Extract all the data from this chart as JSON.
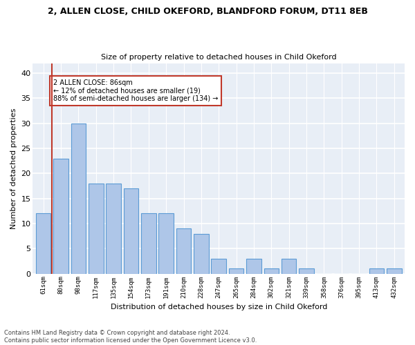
{
  "title1": "2, ALLEN CLOSE, CHILD OKEFORD, BLANDFORD FORUM, DT11 8EB",
  "title2": "Size of property relative to detached houses in Child Okeford",
  "xlabel": "Distribution of detached houses by size in Child Okeford",
  "ylabel": "Number of detached properties",
  "categories": [
    "61sqm",
    "80sqm",
    "98sqm",
    "117sqm",
    "135sqm",
    "154sqm",
    "173sqm",
    "191sqm",
    "210sqm",
    "228sqm",
    "247sqm",
    "265sqm",
    "284sqm",
    "302sqm",
    "321sqm",
    "339sqm",
    "358sqm",
    "376sqm",
    "395sqm",
    "413sqm",
    "432sqm"
  ],
  "values": [
    12,
    23,
    30,
    18,
    18,
    17,
    12,
    12,
    9,
    8,
    3,
    1,
    3,
    1,
    3,
    1,
    0,
    0,
    0,
    1,
    1
  ],
  "bar_color": "#aec6e8",
  "bar_edge_color": "#5b9bd5",
  "background_color": "#e8eef6",
  "grid_color": "#ffffff",
  "vline_x": 0.5,
  "vline_color": "#c0392b",
  "annotation_text": "2 ALLEN CLOSE: 86sqm\n← 12% of detached houses are smaller (19)\n88% of semi-detached houses are larger (134) →",
  "annotation_box_color": "#ffffff",
  "annotation_box_edge": "#c0392b",
  "footer": "Contains HM Land Registry data © Crown copyright and database right 2024.\nContains public sector information licensed under the Open Government Licence v3.0.",
  "ylim": [
    0,
    42
  ],
  "yticks": [
    0,
    5,
    10,
    15,
    20,
    25,
    30,
    35,
    40
  ]
}
